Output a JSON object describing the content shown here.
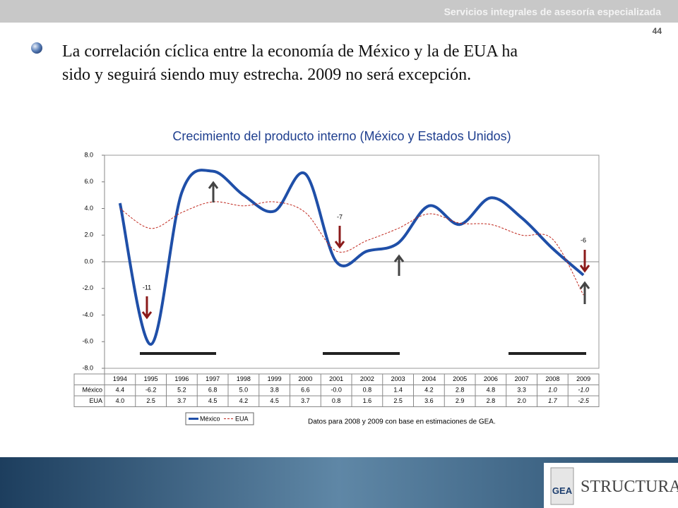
{
  "header": {
    "tagline": "Servicios integrales de asesoría especializada",
    "page": "44"
  },
  "bullet": {
    "lines": [
      "La correlación cíclica entre la economía de México y la de EUA ha",
      "sido y seguirá siendo muy estrecha. 2009 no será excepción."
    ]
  },
  "chart_data": {
    "type": "line",
    "title": "Crecimiento del producto interno (México y Estados Unidos)",
    "categories": [
      "1994",
      "1995",
      "1996",
      "1997",
      "1998",
      "1999",
      "2000",
      "2001",
      "2002",
      "2003",
      "2004",
      "2005",
      "2006",
      "2007",
      "2008",
      "2009"
    ],
    "series": [
      {
        "name": "México",
        "color": "#1f4fa8",
        "values": [
          4.4,
          -6.2,
          5.2,
          6.8,
          5.0,
          3.8,
          6.6,
          0,
          0.8,
          1.4,
          4.2,
          2.8,
          4.8,
          3.3,
          1.0,
          -1.0
        ],
        "value_labels": [
          "4.4",
          "-6.2",
          "5.2",
          "6.8",
          "5.0",
          "3.8",
          "6.6",
          "-0.0",
          "0.8",
          "1.4",
          "4.2",
          "2.8",
          "4.8",
          "3.3",
          "1.0",
          "-1.0"
        ]
      },
      {
        "name": "EUA",
        "color": "#c0281e",
        "values": [
          4.0,
          2.5,
          3.7,
          4.5,
          4.2,
          4.5,
          3.7,
          0.8,
          1.6,
          2.5,
          3.6,
          2.9,
          2.8,
          2.0,
          1.7,
          -2.5
        ],
        "value_labels": [
          "4.0",
          "2.5",
          "3.7",
          "4.5",
          "4.2",
          "4.5",
          "3.7",
          "0.8",
          "1.6",
          "2.5",
          "3.6",
          "2.9",
          "2.8",
          "2.0",
          "1.7",
          "-2.5"
        ]
      }
    ],
    "ylim": [
      -8,
      8
    ],
    "yticks": [
      {
        "value": -8,
        "label": "-8.0"
      },
      {
        "value": -6,
        "label": "-6.0"
      },
      {
        "value": -4,
        "label": "-4.0"
      },
      {
        "value": -2,
        "label": "-2.0"
      },
      {
        "value": 0,
        "label": "0.0"
      },
      {
        "value": 2,
        "label": "2.0"
      },
      {
        "value": 4,
        "label": "4.0"
      },
      {
        "value": 6,
        "label": "6.0"
      },
      {
        "value": 8,
        "label": "8.0"
      }
    ],
    "annotations": [
      "-11",
      "-7",
      "-6"
    ],
    "note": "Datos para 2008 y 2009 con base en estimaciones de GEA."
  },
  "footer": {
    "logo_left": "GEA",
    "logo_right": "STRUCTURA"
  }
}
